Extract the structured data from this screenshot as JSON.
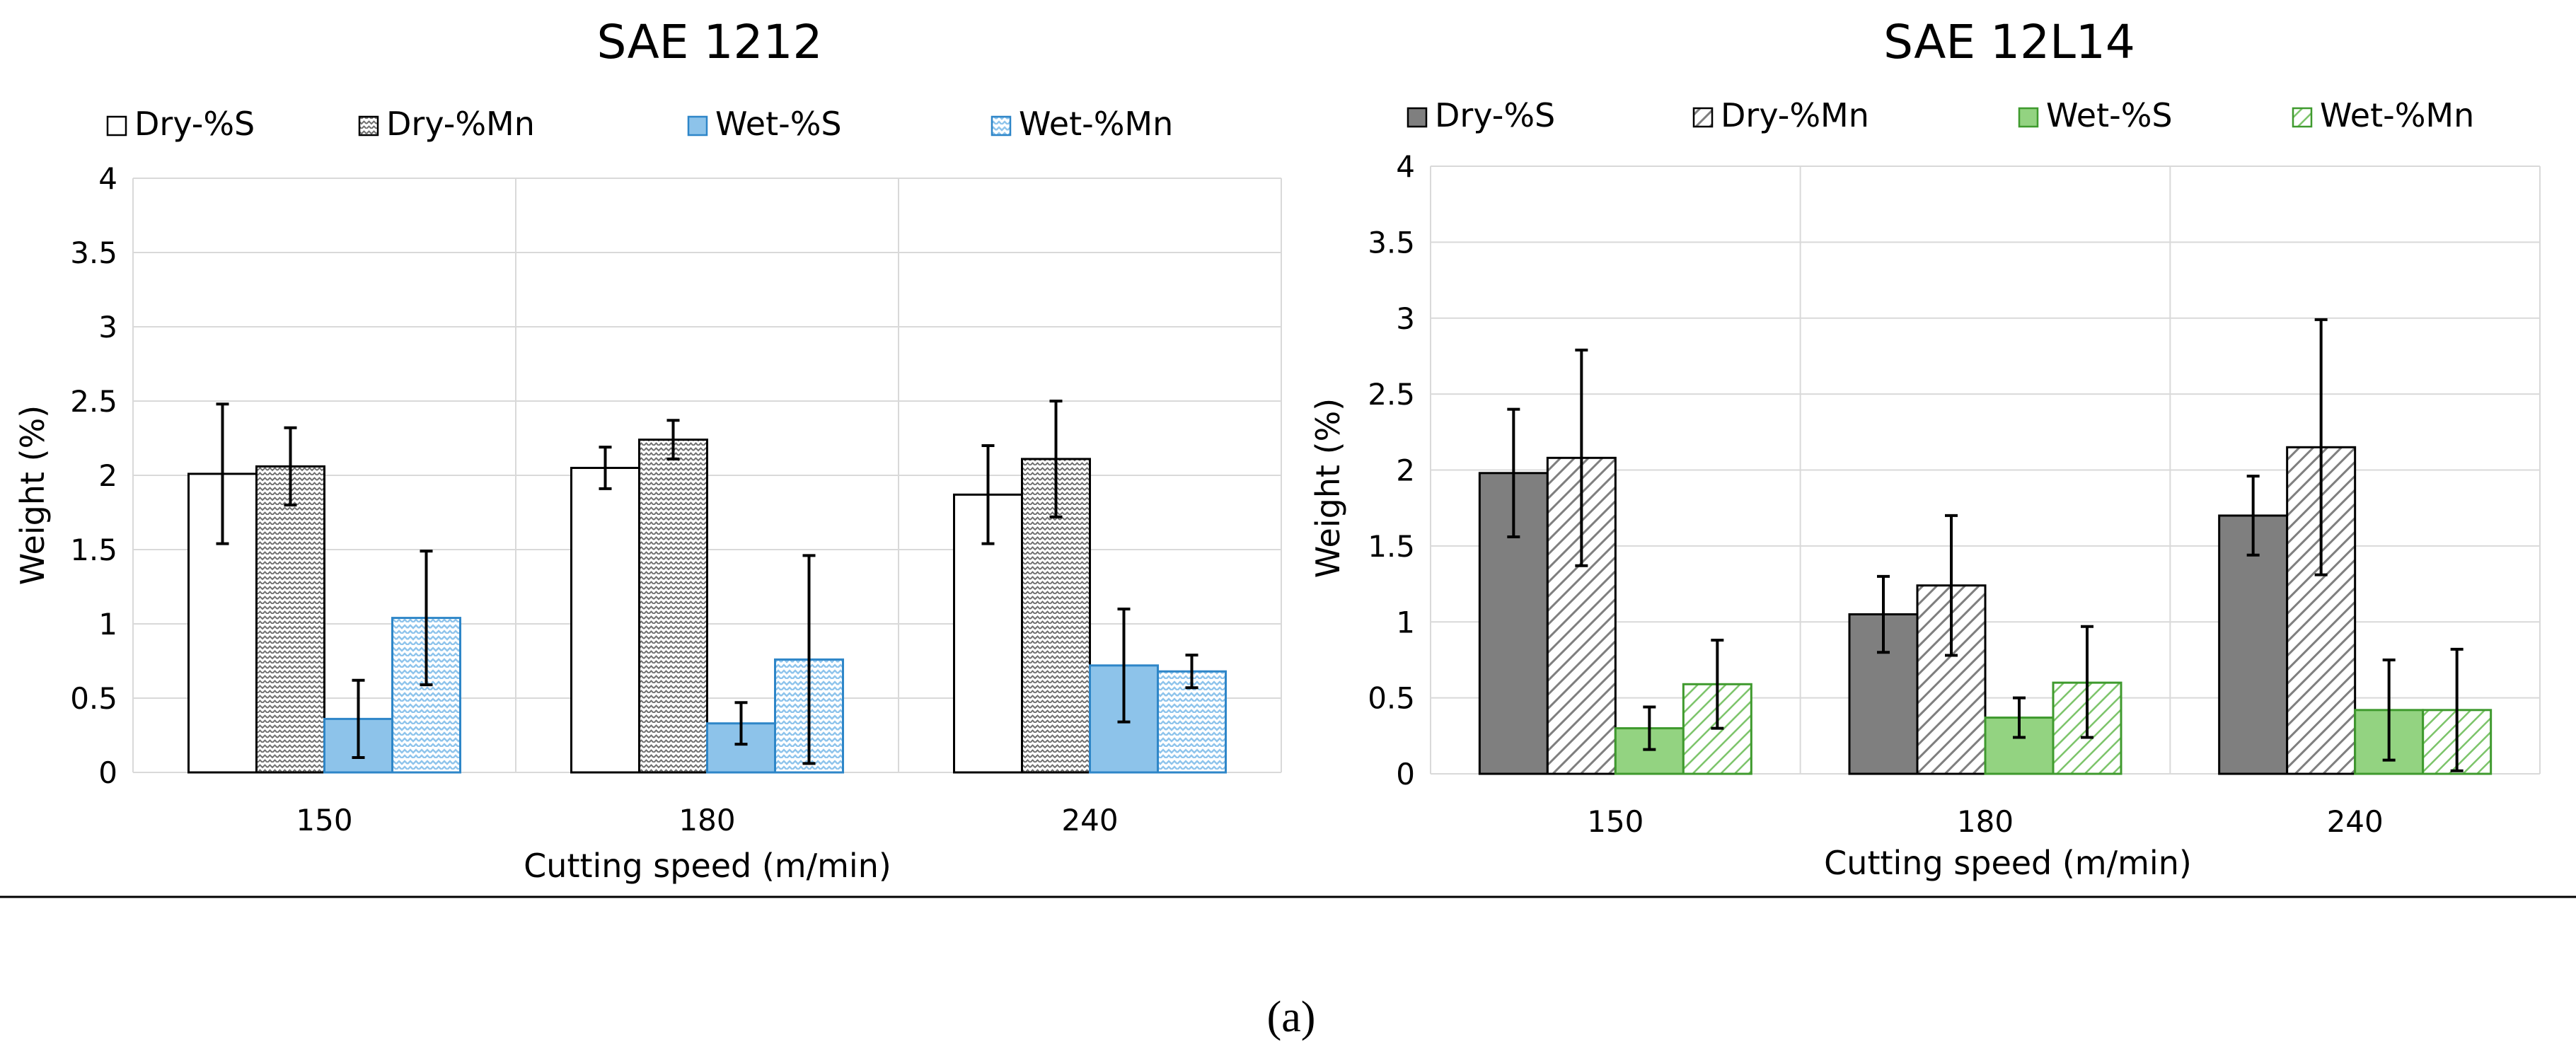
{
  "figure_label": "(a)",
  "colors": {
    "axis": "#d9d9d9",
    "grid": "#d9d9d9",
    "text": "#000000",
    "left_dry_fill": "#ffffff",
    "left_dry_stroke": "#000000",
    "left_drymn_hatch": "#7f7f7f",
    "left_wet_fill": "#8dc3ea",
    "left_wet_stroke": "#2e86c8",
    "left_wetmn_hatch": "#9ccbee",
    "right_dry_fill": "#7f7f7f",
    "right_drymn_hatch": "#7f7f7f",
    "right_wet_fill": "#93d381",
    "right_wet_stroke": "#3f9a2e",
    "right_wetmn_hatch": "#7cc46a"
  },
  "chart_data": [
    {
      "type": "bar",
      "title": "SAE 1212",
      "xlabel": "Cutting speed (m/min)",
      "ylabel": "Weight (%)",
      "categories": [
        "150",
        "180",
        "240"
      ],
      "ylim": [
        0,
        4
      ],
      "yticks": [
        0,
        0.5,
        1,
        1.5,
        2,
        2.5,
        3,
        3.5,
        4
      ],
      "ytick_labels": [
        "0",
        "0.5",
        "1",
        "1.5",
        "2",
        "2.5",
        "3",
        "3.5",
        "4"
      ],
      "grid": true,
      "legend_position": "top",
      "series": [
        {
          "name": "Dry-%S",
          "values": [
            2.01,
            2.05,
            1.87
          ],
          "err_low": [
            1.54,
            1.91,
            1.54
          ],
          "err_high": [
            2.48,
            2.19,
            2.2
          ]
        },
        {
          "name": "Dry-%Mn",
          "values": [
            2.06,
            2.24,
            2.11
          ],
          "err_low": [
            1.8,
            2.11,
            1.72
          ],
          "err_high": [
            2.32,
            2.37,
            2.5
          ]
        },
        {
          "name": "Wet-%S",
          "values": [
            0.36,
            0.33,
            0.72
          ],
          "err_low": [
            0.1,
            0.19,
            0.34
          ],
          "err_high": [
            0.62,
            0.47,
            1.1
          ]
        },
        {
          "name": "Wet-%Mn",
          "values": [
            1.04,
            0.76,
            0.68
          ],
          "err_low": [
            0.59,
            0.06,
            0.57
          ],
          "err_high": [
            1.49,
            1.46,
            0.79
          ]
        }
      ]
    },
    {
      "type": "bar",
      "title": "SAE 12L14",
      "xlabel": "Cutting speed (m/min)",
      "ylabel": "Weight (%)",
      "categories": [
        "150",
        "180",
        "240"
      ],
      "ylim": [
        0,
        4
      ],
      "yticks": [
        0,
        0.5,
        1,
        1.5,
        2,
        2.5,
        3,
        3.5,
        4
      ],
      "ytick_labels": [
        "0",
        "0.5",
        "1",
        "1.5",
        "2",
        "2.5",
        "3",
        "3.5",
        "4"
      ],
      "grid": true,
      "legend_position": "top",
      "series": [
        {
          "name": "Dry-%S",
          "values": [
            1.98,
            1.05,
            1.7
          ],
          "err_low": [
            1.56,
            0.8,
            1.44
          ],
          "err_high": [
            2.4,
            1.3,
            1.96
          ]
        },
        {
          "name": "Dry-%Mn",
          "values": [
            2.08,
            1.24,
            2.15
          ],
          "err_low": [
            1.37,
            0.78,
            1.31
          ],
          "err_high": [
            2.79,
            1.7,
            2.99
          ]
        },
        {
          "name": "Wet-%S",
          "values": [
            0.3,
            0.37,
            0.42
          ],
          "err_low": [
            0.16,
            0.24,
            0.09
          ],
          "err_high": [
            0.44,
            0.5,
            0.75
          ]
        },
        {
          "name": "Wet-%Mn",
          "values": [
            0.59,
            0.6,
            0.42
          ],
          "err_low": [
            0.3,
            0.24,
            0.02
          ],
          "err_high": [
            0.88,
            0.97,
            0.82
          ]
        }
      ]
    }
  ]
}
